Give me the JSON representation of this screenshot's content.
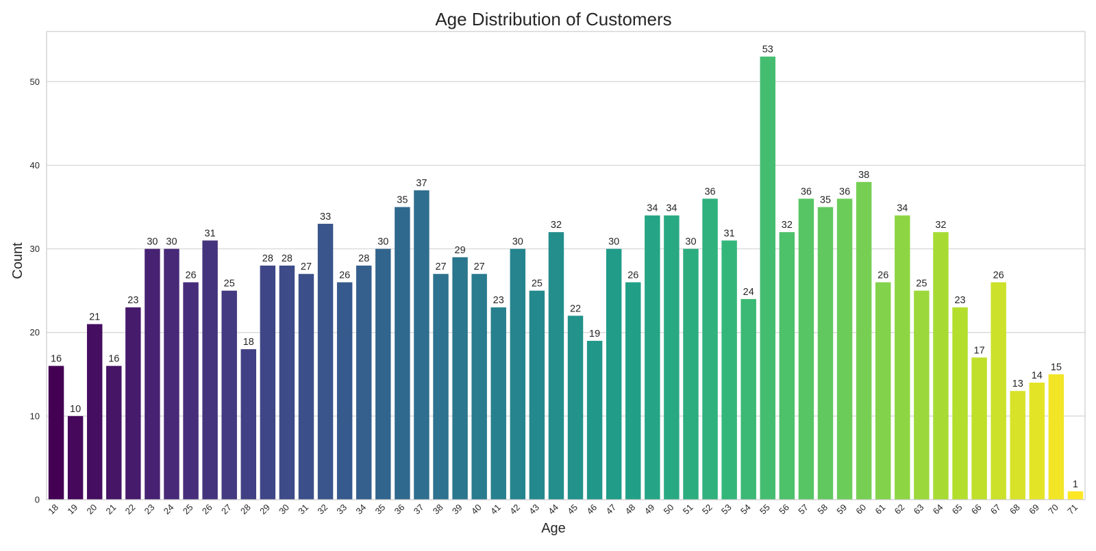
{
  "chart_data": {
    "type": "bar",
    "title": "Age Distribution of Customers",
    "xlabel": "Age",
    "ylabel": "Count",
    "ylim": [
      0,
      56
    ],
    "yticks": [
      0,
      10,
      20,
      30,
      40,
      50
    ],
    "grid": "horizontal",
    "palette": "viridis",
    "categories": [
      "18",
      "19",
      "20",
      "21",
      "22",
      "23",
      "24",
      "25",
      "26",
      "27",
      "28",
      "29",
      "30",
      "31",
      "32",
      "33",
      "34",
      "35",
      "36",
      "37",
      "38",
      "39",
      "40",
      "41",
      "42",
      "43",
      "44",
      "45",
      "46",
      "47",
      "48",
      "49",
      "50",
      "51",
      "52",
      "53",
      "54",
      "55",
      "56",
      "57",
      "58",
      "59",
      "60",
      "61",
      "62",
      "63",
      "64",
      "65",
      "66",
      "67",
      "68",
      "69",
      "70",
      "71"
    ],
    "values": [
      16,
      10,
      21,
      16,
      23,
      30,
      30,
      26,
      31,
      25,
      18,
      28,
      28,
      27,
      33,
      26,
      28,
      30,
      35,
      37,
      27,
      29,
      27,
      23,
      30,
      25,
      32,
      22,
      19,
      30,
      26,
      34,
      34,
      30,
      36,
      31,
      24,
      53,
      32,
      36,
      35,
      36,
      38,
      26,
      34,
      25,
      32,
      23,
      17,
      26,
      13,
      14,
      15,
      1
    ],
    "colors": {
      "grid": "#d4d4d4",
      "frame": "#cccccc",
      "text": "#262626"
    }
  }
}
